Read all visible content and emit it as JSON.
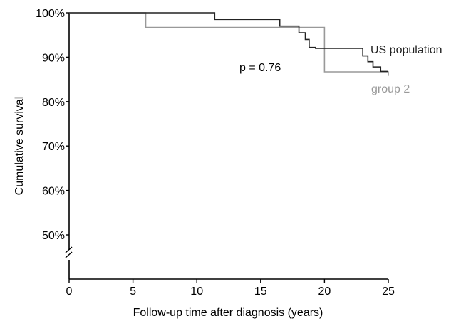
{
  "chart_data": {
    "type": "line",
    "title": "",
    "xlabel": "Follow-up time after diagnosis (years)",
    "ylabel": "Cumulative survival",
    "xlim": [
      0,
      25
    ],
    "ylim": [
      45,
      100
    ],
    "y_axis_break": true,
    "grid": false,
    "x_ticks": [
      0,
      5,
      10,
      15,
      20,
      25
    ],
    "x_tick_labels": [
      "0",
      "5",
      "10",
      "15",
      "20",
      "25"
    ],
    "y_ticks": [
      50,
      60,
      70,
      80,
      90,
      100
    ],
    "y_tick_labels": [
      "50%",
      "60%",
      "70%",
      "80%",
      "90%",
      "100%"
    ],
    "annotation": "p = 0.76",
    "series": [
      {
        "name": "US population",
        "color": "#222222",
        "step": true,
        "x": [
          0,
          11.4,
          16.5,
          18.0,
          18.5,
          18.8,
          19.3,
          20.0,
          23.0,
          23.4,
          23.8,
          24.4,
          25.0
        ],
        "y": [
          100,
          98.5,
          97.0,
          95.5,
          94.0,
          92.2,
          92.0,
          92.0,
          90.3,
          89.0,
          87.8,
          86.8,
          86.8
        ]
      },
      {
        "name": "group 2",
        "color": "#999999",
        "step": true,
        "x": [
          0,
          6.0,
          20.0,
          25.0
        ],
        "y": [
          100,
          96.7,
          86.7,
          85.8
        ]
      }
    ]
  }
}
